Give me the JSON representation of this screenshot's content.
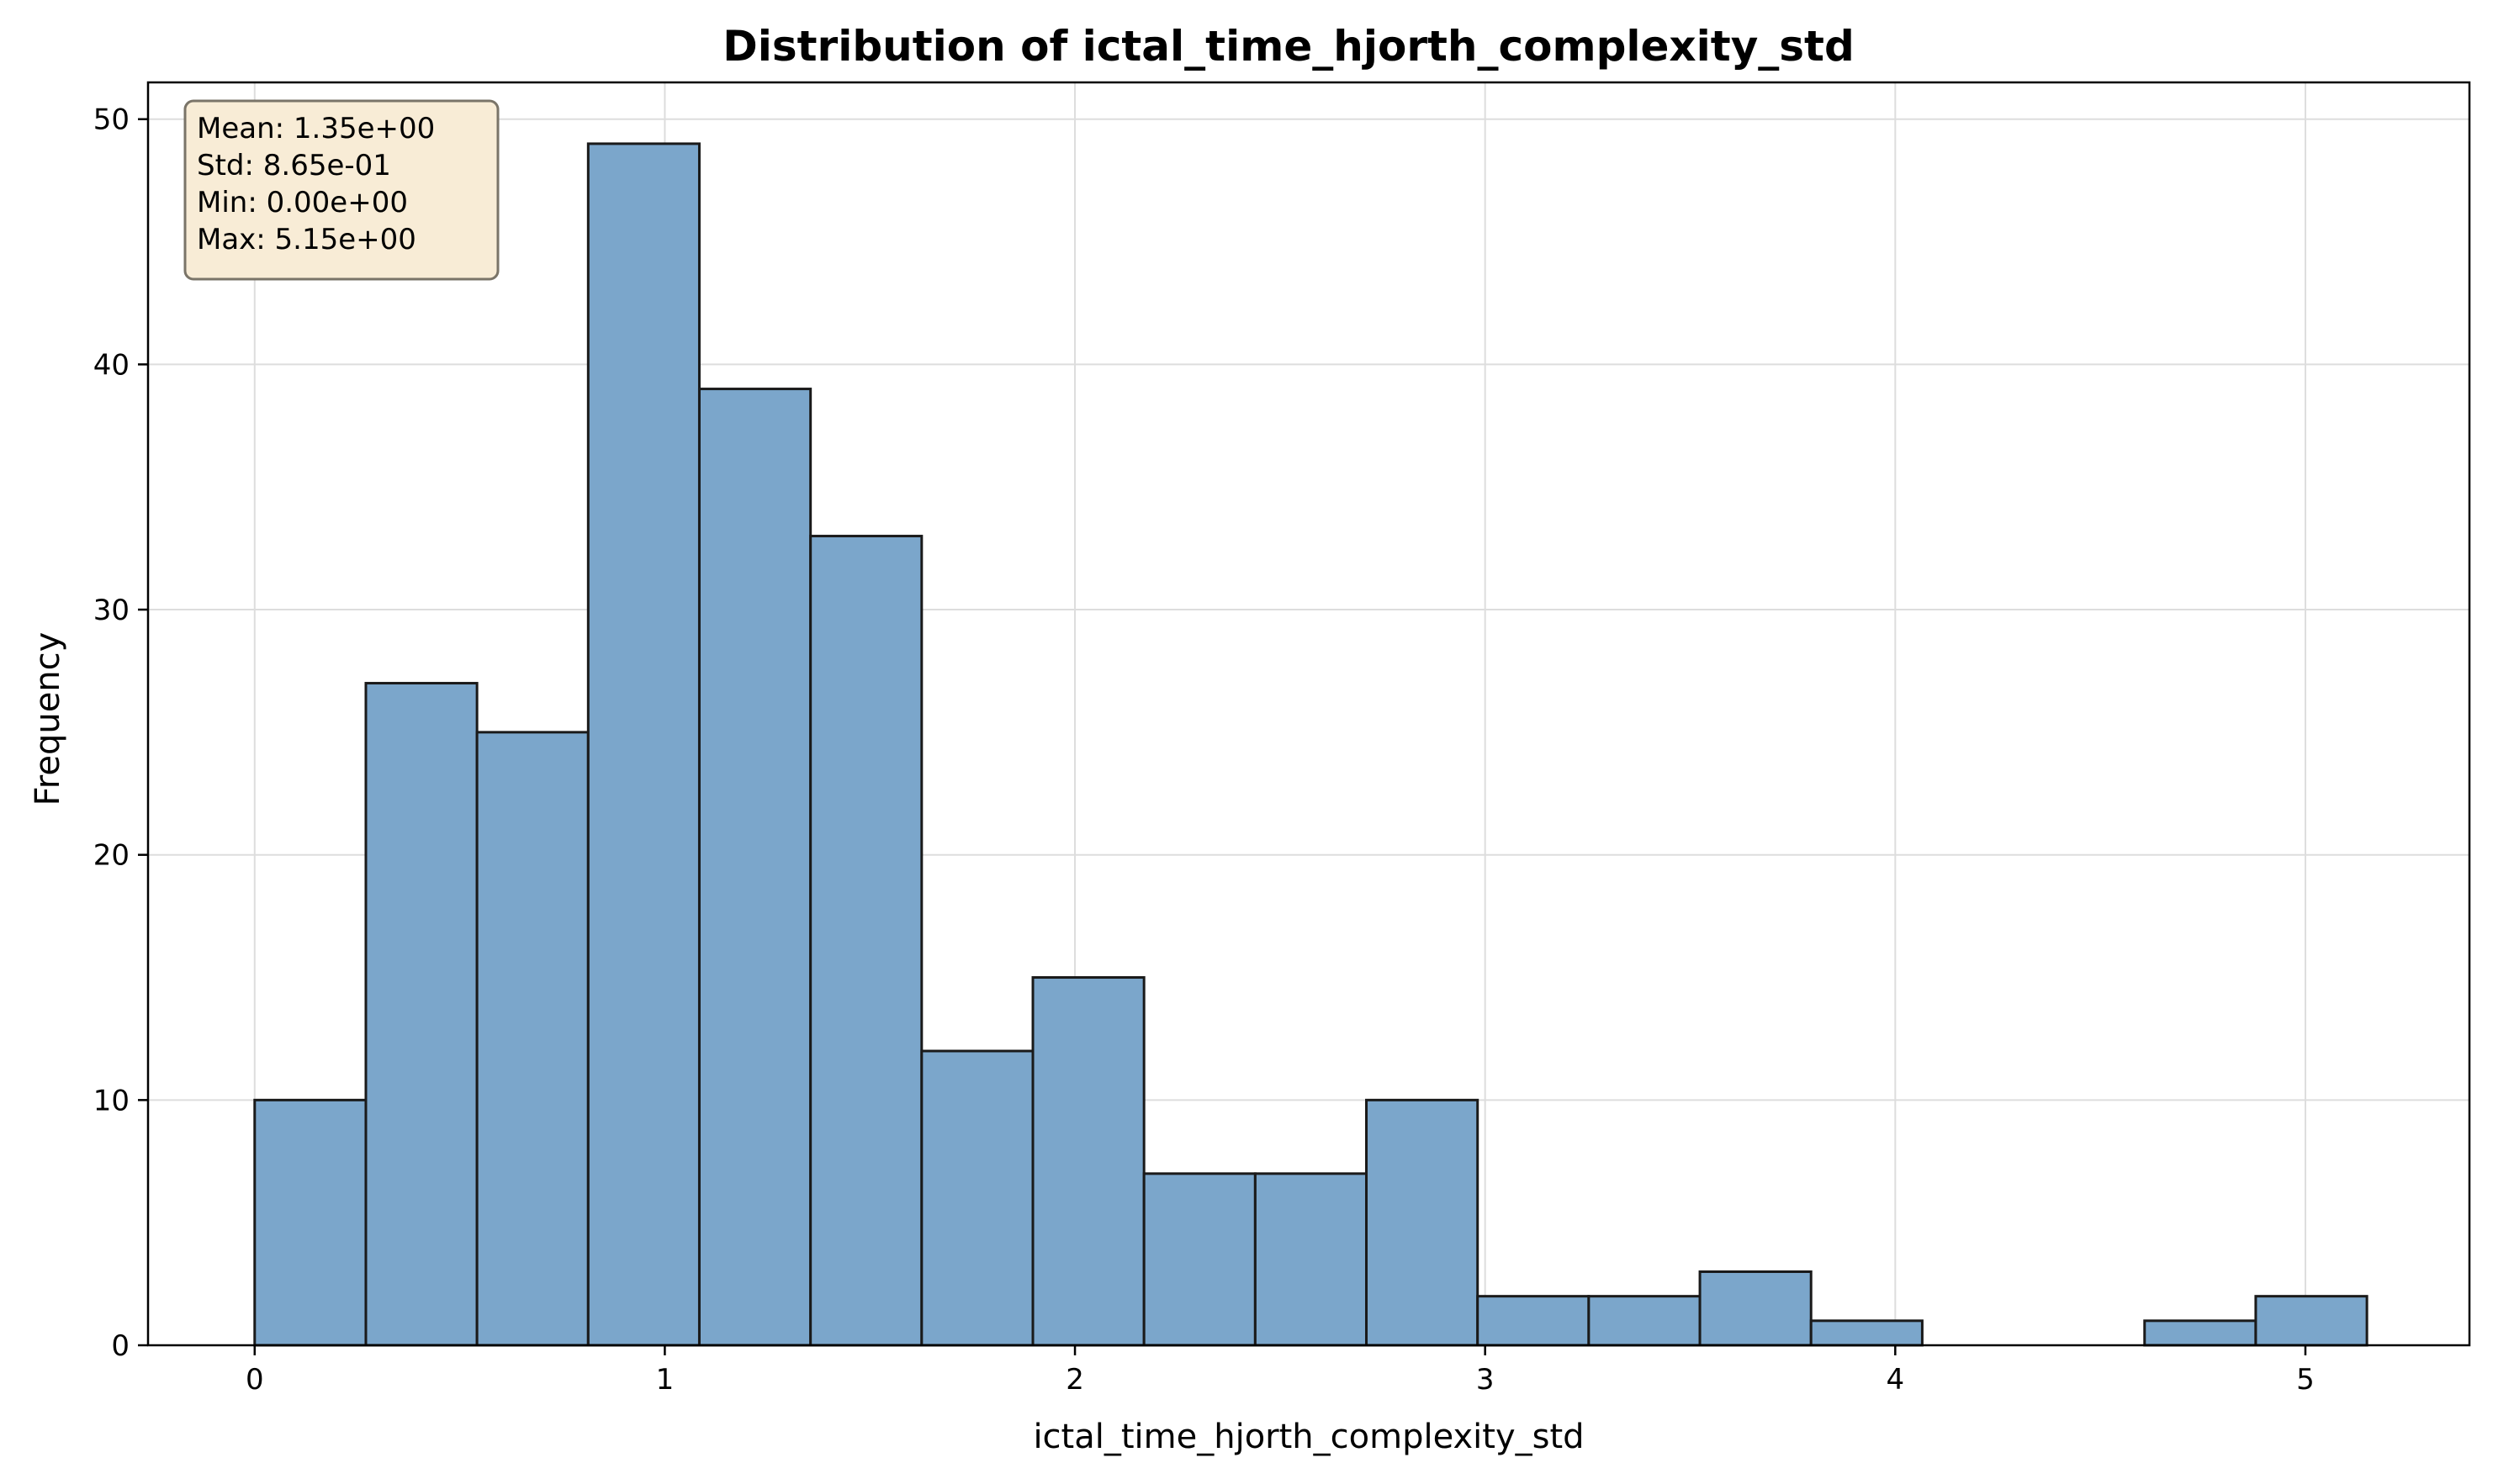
{
  "chart_data": {
    "type": "bar",
    "title": "Distribution of ictal_time_hjorth_complexity_std",
    "xlabel": "ictal_time_hjorth_complexity_std",
    "ylabel": "Frequency",
    "xlim": [
      -0.26,
      5.4
    ],
    "ylim": [
      0,
      51.5
    ],
    "xticks": [
      0,
      1,
      2,
      3,
      4,
      5
    ],
    "yticks": [
      0,
      10,
      20,
      30,
      40,
      50
    ],
    "grid": true,
    "bin_edges": [
      0.0,
      0.2711,
      0.5421,
      0.8132,
      1.0842,
      1.3553,
      1.6263,
      1.8974,
      2.1684,
      2.4395,
      2.7105,
      2.9816,
      3.2526,
      3.5237,
      3.7947,
      4.0658,
      4.3368,
      4.6079,
      4.8789,
      5.15
    ],
    "values": [
      10,
      27,
      25,
      49,
      39,
      33,
      12,
      15,
      7,
      7,
      10,
      2,
      2,
      3,
      1,
      0,
      0,
      1,
      2
    ],
    "bar_color": "#7ba6cb",
    "edge_color": "#1a1a1a",
    "stats_box": {
      "lines": [
        "Mean: 1.35e+00",
        "Std: 8.65e-01",
        "Min: 0.00e+00",
        "Max: 5.15e+00"
      ],
      "placement": "top-left",
      "background": "#f8ecd6"
    }
  }
}
